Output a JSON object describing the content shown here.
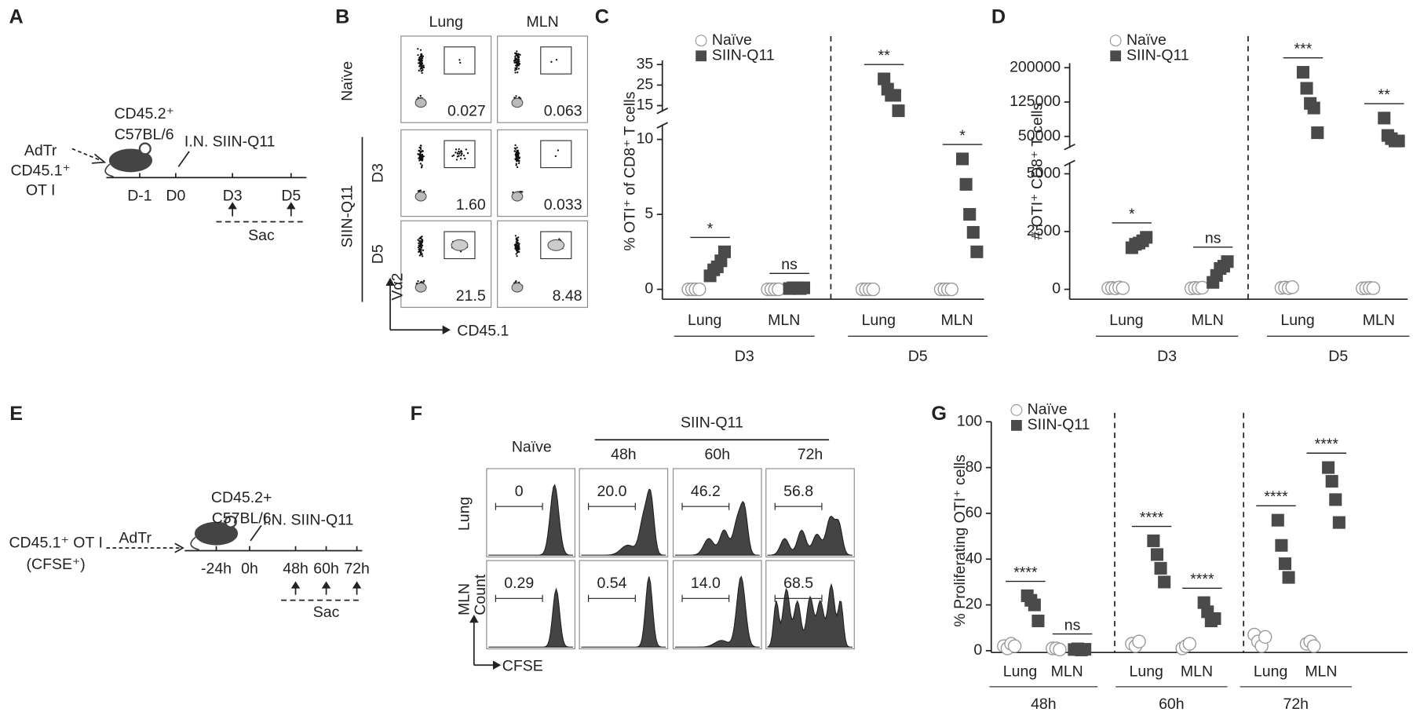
{
  "panels": {
    "A": {
      "label": "A",
      "donor": [
        "AdTr",
        "CD45.1⁺",
        "OT I"
      ],
      "host": [
        "CD45.2⁺",
        "C57BL/6"
      ],
      "treatment": "I.N. SIIN-Q11",
      "timeline": [
        "D-1",
        "D0",
        "D3",
        "D5"
      ],
      "harvest": "Sac"
    },
    "B": {
      "label": "B",
      "columns": [
        "Lung",
        "MLN"
      ],
      "naive_row": "Naïve",
      "group": "SIIN-Q11",
      "days": [
        "D3",
        "D5"
      ],
      "y_axis": "Vα2",
      "x_axis": "CD45.1",
      "gates": [
        [
          "0.027",
          "0.063"
        ],
        [
          "1.60",
          "0.033"
        ],
        [
          "21.5",
          "8.48"
        ]
      ]
    },
    "E": {
      "label": "E",
      "donor": [
        "CD45.1⁺ OT I",
        "(CFSE⁺)"
      ],
      "transfer": "AdTr",
      "host": [
        "CD45.2+",
        "C57BL/6"
      ],
      "treatment": "I.N. SIIN-Q11",
      "timeline": [
        "-24h",
        "0h",
        "48h",
        "60h",
        "72h"
      ],
      "harvest": "Sac"
    },
    "F": {
      "label": "F",
      "naive_column": "Naïve",
      "group": "SIIN-Q11",
      "times": [
        "48h",
        "60h",
        "72h"
      ],
      "rows": [
        "Lung",
        "MLN"
      ],
      "y_axis": "Count",
      "x_axis": "CFSE",
      "gates": [
        [
          "0",
          "20.0",
          "46.2",
          "56.8"
        ],
        [
          "0.29",
          "0.54",
          "14.0",
          "68.5"
        ]
      ]
    }
  },
  "chart_data": [
    {
      "type": "strip",
      "label": "C",
      "y_label": "% OTI⁺ of CD8⁺ T cells",
      "categories": [
        "Lung",
        "MLN",
        "Lung",
        "MLN"
      ],
      "groups": [
        "D3",
        "D5"
      ],
      "series": [
        {
          "name": "Naïve",
          "marker": "circle",
          "color": "#ffffff",
          "values": [
            [
              0,
              0,
              0,
              0
            ],
            [
              0,
              0,
              0,
              0
            ],
            [
              0,
              0,
              0,
              0
            ],
            [
              0,
              0,
              0,
              0
            ]
          ]
        },
        {
          "name": "SIIN-Q11",
          "marker": "square",
          "color": "#4a4a4a",
          "values": [
            [
              0.9,
              1.3,
              1.5,
              1.9,
              2.5
            ],
            [
              0.05,
              0.1,
              0.1,
              0.05,
              0.1
            ],
            [
              28,
              23,
              20,
              20,
              12.5
            ],
            [
              8.7,
              7,
              5,
              3.8,
              2.5
            ]
          ]
        }
      ],
      "significance": [
        "*",
        "ns",
        "**",
        "*"
      ],
      "y_segments": [
        {
          "ylim": [
            0,
            11
          ],
          "yticks": [
            0,
            5,
            10
          ]
        },
        {
          "ylim": [
            12,
            37
          ],
          "yticks": [
            15,
            25,
            35
          ]
        }
      ],
      "legend": "top-left"
    },
    {
      "type": "strip",
      "label": "D",
      "y_label": "# OTI⁺ CD8⁺ T cells",
      "categories": [
        "Lung",
        "MLN",
        "Lung",
        "MLN"
      ],
      "groups": [
        "D3",
        "D5"
      ],
      "series": [
        {
          "name": "Naïve",
          "marker": "circle",
          "color": "#ffffff",
          "values": [
            [
              50,
              60,
              40,
              80,
              50
            ],
            [
              40,
              60,
              50,
              70
            ],
            [
              60,
              80,
              50,
              90
            ],
            [
              40,
              50,
              60,
              50
            ]
          ]
        },
        {
          "name": "SIIN-Q11",
          "marker": "square",
          "color": "#4a4a4a",
          "values": [
            [
              1800,
              1950,
              2000,
              2100,
              2250
            ],
            [
              300,
              600,
              900,
              1000,
              1200
            ],
            [
              190000,
              155000,
              122000,
              112000,
              58000
            ],
            [
              90000,
              52000,
              45000,
              40000,
              40000
            ]
          ]
        }
      ],
      "significance": [
        "*",
        "ns",
        "***",
        "**"
      ],
      "y_segments": [
        {
          "ylim": [
            0,
            5500
          ],
          "yticks": [
            0,
            2500,
            5000
          ]
        },
        {
          "ylim": [
            25000,
            210000
          ],
          "yticks": [
            50000,
            125000,
            200000
          ]
        }
      ],
      "legend": "top-left"
    },
    {
      "type": "strip",
      "label": "G",
      "y_label": "% Proliferating OTI⁺ cells",
      "categories": [
        "Lung",
        "MLN",
        "Lung",
        "MLN",
        "Lung",
        "MLN"
      ],
      "groups": [
        "48h",
        "60h",
        "72h"
      ],
      "series": [
        {
          "name": "Naïve",
          "marker": "circle",
          "color": "#ffffff",
          "values": [
            [
              2,
              1,
              3,
              2
            ],
            [
              1,
              1,
              0.5
            ],
            [
              3,
              2,
              4
            ],
            [
              1,
              2,
              3
            ],
            [
              7,
              4,
              2,
              6
            ],
            [
              3,
              4,
              2
            ]
          ]
        },
        {
          "name": "SIIN-Q11",
          "marker": "square",
          "color": "#4a4a4a",
          "values": [
            [
              24,
              22,
              20,
              13
            ],
            [
              0.5,
              0.8,
              0.3,
              0.6
            ],
            [
              48,
              42,
              36,
              30
            ],
            [
              21,
              17,
              13,
              14
            ],
            [
              57,
              46,
              38,
              32
            ],
            [
              80,
              74,
              66,
              56
            ]
          ]
        }
      ],
      "significance": [
        "****",
        "ns",
        "****",
        "****",
        "****",
        "****"
      ],
      "y_segments": [
        {
          "ylim": [
            0,
            100
          ],
          "yticks": [
            0,
            20,
            40,
            60,
            80,
            100
          ]
        }
      ],
      "legend": "top-left"
    }
  ]
}
